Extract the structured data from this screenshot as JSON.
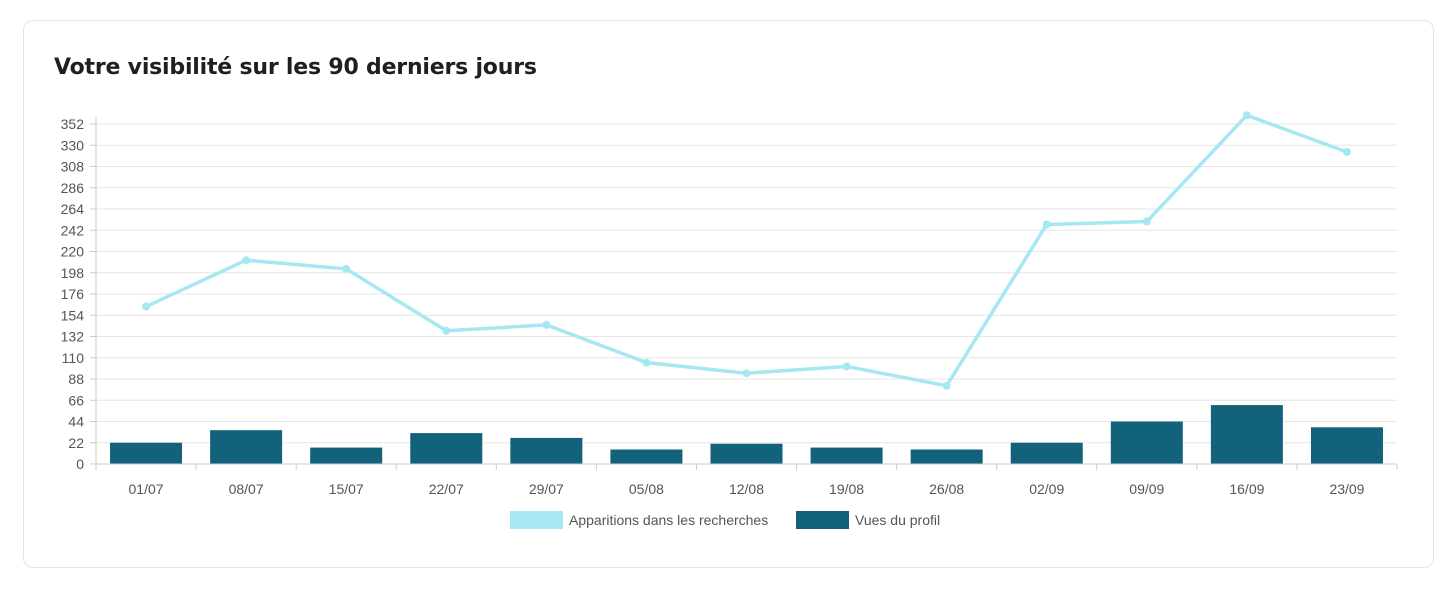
{
  "card": {
    "title": "Votre visibilité sur les 90 derniers jours"
  },
  "colors": {
    "line": "#a6e8f2",
    "bar": "#11627a",
    "grid": "#e6e6e6",
    "axis": "#cccccc"
  },
  "chart_data": {
    "type": "bar",
    "title": "Votre visibilité sur les 90 derniers jours",
    "categories": [
      "01/07",
      "08/07",
      "15/07",
      "22/07",
      "29/07",
      "05/08",
      "12/08",
      "19/08",
      "26/08",
      "02/09",
      "09/09",
      "16/09",
      "23/09"
    ],
    "series": [
      {
        "name": "Apparitions dans les recherches",
        "type": "line",
        "values": [
          163,
          211,
          202,
          138,
          144,
          105,
          94,
          101,
          81,
          248,
          251,
          361,
          323
        ]
      },
      {
        "name": "Vues du profil",
        "type": "bar",
        "values": [
          22,
          35,
          17,
          32,
          27,
          15,
          21,
          17,
          15,
          22,
          44,
          61,
          38
        ]
      }
    ],
    "yticks": [
      "0",
      "22",
      "44",
      "66",
      "88",
      "110",
      "132",
      "154",
      "176",
      "198",
      "220",
      "242",
      "264",
      "286",
      "308",
      "330",
      "352"
    ],
    "ylim": [
      0,
      360
    ],
    "grid": true,
    "legend": "bottom-center"
  }
}
